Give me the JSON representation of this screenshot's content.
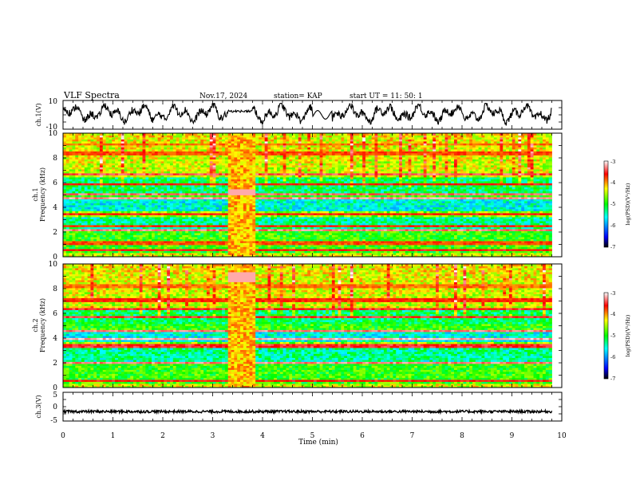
{
  "header": {
    "title": "VLF Spectra",
    "date": "Nov.17, 2024",
    "station": "station= KAP",
    "start_ut": "start  UT  =   11: 50: 1"
  },
  "chart_data": [
    {
      "type": "line",
      "name": "ch1-waveform",
      "ylabel": "ch.1(V)",
      "ylim": [
        -10,
        10
      ],
      "yticks": [
        "10",
        "-10"
      ],
      "note": "dense noisy waveform oscillating roughly between -5 V and +7 V across 0-9.8 min"
    },
    {
      "type": "heatmap",
      "name": "ch1-spectrogram",
      "ylabel_top": "ch.1",
      "ylabel": "Frequency  (kHz)",
      "ylim": [
        0,
        10
      ],
      "yticks": [
        "0",
        "2",
        "4",
        "6",
        "8",
        "10"
      ],
      "xlim": [
        0,
        10
      ],
      "data_extent_min": 9.8,
      "disturbance_min": [
        3.25,
        3.85
      ],
      "colorbar": {
        "label": "log(PSD)(V²/Hz)",
        "range": [
          -7,
          -3
        ],
        "ticks": [
          "-3",
          "-4",
          "-5",
          "-6",
          "-7"
        ],
        "colors": [
          "#000000",
          "#0000ff",
          "#00ffff",
          "#00ff00",
          "#ffff00",
          "#ff0000",
          "#ffffff"
        ]
      }
    },
    {
      "type": "heatmap",
      "name": "ch2-spectrogram",
      "ylabel_top": "ch.2",
      "ylabel": "Frequency  (kHz)",
      "ylim": [
        0,
        10
      ],
      "yticks": [
        "0",
        "2",
        "4",
        "6",
        "8",
        "10"
      ],
      "xlim": [
        0,
        10
      ],
      "data_extent_min": 9.8,
      "disturbance_min": [
        3.25,
        3.85
      ],
      "colorbar": {
        "label": "log(PSD)(V²/Hz)",
        "range": [
          -7,
          -3
        ],
        "ticks": [
          "-3",
          "-4",
          "-5",
          "-6",
          "-7"
        ],
        "colors": [
          "#000000",
          "#0000ff",
          "#00ffff",
          "#00ff00",
          "#ffff00",
          "#ff0000",
          "#ffffff"
        ]
      }
    },
    {
      "type": "line",
      "name": "ch3-waveform",
      "ylabel": "ch.3(V)",
      "ylim": [
        -5,
        5
      ],
      "yticks": [
        "5",
        "0",
        "-5"
      ],
      "note": "nearly flat trace near -1.7 V with small fluctuations"
    }
  ],
  "xaxis": {
    "label": "Time  (min)",
    "ticks": [
      "0",
      "1",
      "2",
      "3",
      "4",
      "5",
      "6",
      "7",
      "8",
      "9",
      "10"
    ],
    "xlim": [
      0,
      10
    ]
  }
}
